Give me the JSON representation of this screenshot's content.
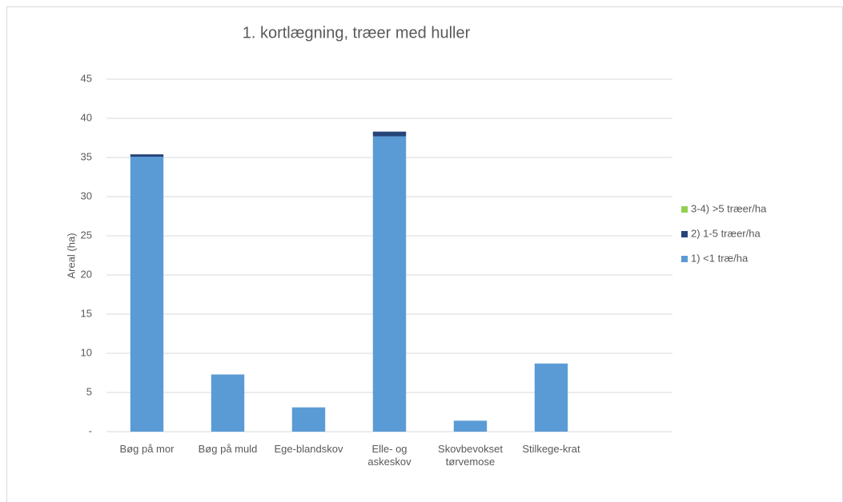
{
  "chart_data": {
    "type": "stacked_bar",
    "title": "1. kortlægning, træer med huller",
    "y_label": "Areal (ha)",
    "categories": [
      "Bøg på mor",
      "Bøg på muld",
      "Ege-blandskov",
      "Elle- og askeskov",
      "Skovbevokset tørvemose",
      "Stilkege-krat",
      null
    ],
    "series": [
      {
        "name": "1) <1 træ/ha",
        "color": "#5b9bd5",
        "values": [
          35.1,
          7.3,
          3.1,
          37.7,
          1.4,
          8.7,
          null
        ]
      },
      {
        "name": "2) 1-5 træer/ha",
        "color": "#264478",
        "values": [
          0.3,
          0,
          0,
          0.6,
          0,
          0,
          null
        ]
      },
      {
        "name": "3-4) >5 træer/ha",
        "color": "#92d050",
        "values": [
          0,
          0,
          0,
          0,
          0,
          0,
          null
        ]
      }
    ],
    "ylim": [
      0,
      45
    ],
    "yticks": [
      {
        "value": 0,
        "label": "-"
      },
      5,
      10,
      15,
      20,
      25,
      30,
      35,
      40,
      45
    ],
    "grid": true,
    "legend": "right"
  }
}
